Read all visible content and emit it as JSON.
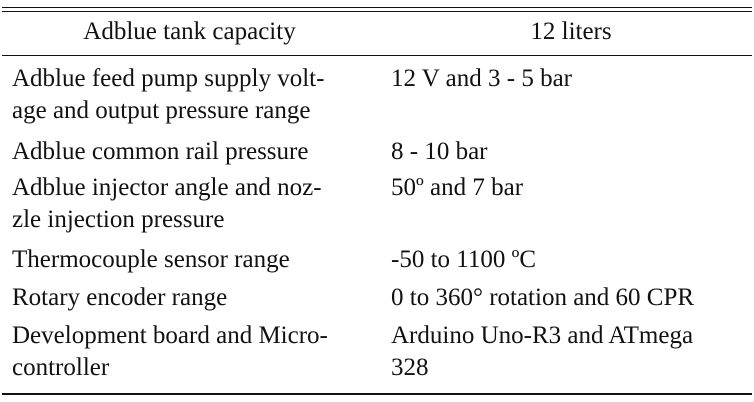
{
  "table": {
    "header": {
      "col1": "Adblue tank capacity",
      "col2": "12 liters"
    },
    "rows": [
      {
        "label": "Adblue feed pump supply volt-\nage and output pressure range",
        "value": "12 V and 3 - 5 bar"
      },
      {
        "label": "Adblue common rail pressure",
        "value": "8 - 10 bar"
      },
      {
        "label": "Adblue injector angle and noz-\nzle injection pressure",
        "value": "50º and 7 bar"
      },
      {
        "label": "Thermocouple sensor range",
        "value": "-50 to 1100 ºC"
      },
      {
        "label": "Rotary encoder range",
        "value": "0 to 360° rotation and 60 CPR"
      },
      {
        "label": "Development board and Micro-\ncontroller",
        "value": "Arduino Uno-R3 and ATmega\n328"
      }
    ]
  }
}
